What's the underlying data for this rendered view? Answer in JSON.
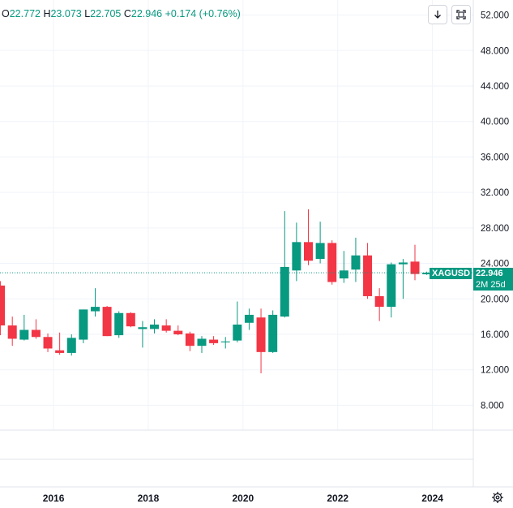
{
  "ohlc": {
    "o_label": "O",
    "o_value": "22.772",
    "h_label": "H",
    "h_value": "23.073",
    "l_label": "L",
    "l_value": "22.705",
    "c_label": "C",
    "c_value": "22.946",
    "change": "+0.174 (+0.76%)"
  },
  "toolbar": {
    "download_icon": "arrow-down-icon",
    "fullscreen_icon": "fullscreen-icon"
  },
  "symbol": {
    "name": "XAGUSD",
    "price": "22.946",
    "countdown": "2M 25d"
  },
  "colors": {
    "up": "#089981",
    "down": "#f23645",
    "grid": "#f0f3fa",
    "text": "#131722",
    "badge": "#089981"
  },
  "chart_data": {
    "type": "candlestick",
    "x_ticks": [
      "2016",
      "2018",
      "2020",
      "2022",
      "2024"
    ],
    "y_ticks": [
      "52.000",
      "48.000",
      "44.000",
      "40.000",
      "36.000",
      "32.000",
      "28.000",
      "24.000",
      "20.000",
      "16.000",
      "12.000",
      "8.000"
    ],
    "ylim": [
      5.2,
      53.7
    ],
    "xlim": [
      2014.87,
      2025.7
    ],
    "interval": "quarterly",
    "last_price": 22.946,
    "candles": [
      {
        "t": 2014.88,
        "o": 21.5,
        "h": 22.0,
        "l": 15.9,
        "c": 17.0
      },
      {
        "t": 2015.13,
        "o": 17.0,
        "h": 18.0,
        "l": 14.7,
        "c": 15.5
      },
      {
        "t": 2015.38,
        "o": 15.4,
        "h": 18.2,
        "l": 15.3,
        "c": 16.5
      },
      {
        "t": 2015.63,
        "o": 16.5,
        "h": 17.7,
        "l": 15.5,
        "c": 15.7
      },
      {
        "t": 2015.88,
        "o": 15.7,
        "h": 16.1,
        "l": 14.0,
        "c": 14.4
      },
      {
        "t": 2016.13,
        "o": 14.2,
        "h": 16.2,
        "l": 13.7,
        "c": 13.9
      },
      {
        "t": 2016.38,
        "o": 13.9,
        "h": 16.0,
        "l": 13.6,
        "c": 15.6
      },
      {
        "t": 2016.63,
        "o": 15.4,
        "h": 18.8,
        "l": 15.0,
        "c": 18.8
      },
      {
        "t": 2016.88,
        "o": 18.6,
        "h": 21.2,
        "l": 18.0,
        "c": 19.1
      },
      {
        "t": 2017.13,
        "o": 19.1,
        "h": 19.2,
        "l": 15.8,
        "c": 15.8
      },
      {
        "t": 2017.38,
        "o": 15.9,
        "h": 18.6,
        "l": 15.6,
        "c": 18.4
      },
      {
        "t": 2017.63,
        "o": 18.4,
        "h": 18.5,
        "l": 16.8,
        "c": 16.9
      },
      {
        "t": 2017.88,
        "o": 16.6,
        "h": 17.5,
        "l": 14.5,
        "c": 16.8
      },
      {
        "t": 2018.13,
        "o": 16.6,
        "h": 17.7,
        "l": 16.1,
        "c": 17.1
      },
      {
        "t": 2018.38,
        "o": 17.0,
        "h": 17.7,
        "l": 16.2,
        "c": 16.4
      },
      {
        "t": 2018.63,
        "o": 16.4,
        "h": 17.0,
        "l": 15.9,
        "c": 16.0
      },
      {
        "t": 2018.88,
        "o": 16.1,
        "h": 16.3,
        "l": 14.1,
        "c": 14.7
      },
      {
        "t": 2019.13,
        "o": 14.7,
        "h": 15.8,
        "l": 13.9,
        "c": 15.5
      },
      {
        "t": 2019.38,
        "o": 15.4,
        "h": 15.8,
        "l": 14.8,
        "c": 15.0
      },
      {
        "t": 2019.63,
        "o": 15.1,
        "h": 15.7,
        "l": 14.4,
        "c": 15.2
      },
      {
        "t": 2019.88,
        "o": 15.3,
        "h": 19.7,
        "l": 15.1,
        "c": 17.1
      },
      {
        "t": 2020.13,
        "o": 17.3,
        "h": 18.9,
        "l": 16.5,
        "c": 18.2
      },
      {
        "t": 2020.38,
        "o": 17.9,
        "h": 18.9,
        "l": 11.6,
        "c": 14.0
      },
      {
        "t": 2020.63,
        "o": 14.0,
        "h": 18.7,
        "l": 13.9,
        "c": 18.2
      },
      {
        "t": 2020.88,
        "o": 18.0,
        "h": 29.9,
        "l": 17.9,
        "c": 23.6
      },
      {
        "t": 2021.13,
        "o": 23.2,
        "h": 28.6,
        "l": 22.0,
        "c": 26.4
      },
      {
        "t": 2021.38,
        "o": 26.4,
        "h": 30.1,
        "l": 23.8,
        "c": 24.3
      },
      {
        "t": 2021.63,
        "o": 24.5,
        "h": 28.7,
        "l": 24.0,
        "c": 26.3
      },
      {
        "t": 2021.88,
        "o": 26.3,
        "h": 26.6,
        "l": 21.6,
        "c": 21.9
      },
      {
        "t": 2022.13,
        "o": 22.3,
        "h": 25.4,
        "l": 21.8,
        "c": 23.2
      },
      {
        "t": 2022.38,
        "o": 23.3,
        "h": 26.9,
        "l": 21.9,
        "c": 24.9
      },
      {
        "t": 2022.63,
        "o": 24.9,
        "h": 26.3,
        "l": 20.0,
        "c": 20.3
      },
      {
        "t": 2022.88,
        "o": 20.3,
        "h": 21.2,
        "l": 17.5,
        "c": 19.1
      },
      {
        "t": 2023.13,
        "o": 19.1,
        "h": 24.1,
        "l": 17.9,
        "c": 23.9
      },
      {
        "t": 2023.38,
        "o": 23.9,
        "h": 24.5,
        "l": 20.0,
        "c": 24.1
      },
      {
        "t": 2023.63,
        "o": 24.2,
        "h": 26.1,
        "l": 22.1,
        "c": 22.8
      },
      {
        "t": 2023.88,
        "o": 22.77,
        "h": 23.07,
        "l": 22.7,
        "c": 22.95
      }
    ]
  }
}
